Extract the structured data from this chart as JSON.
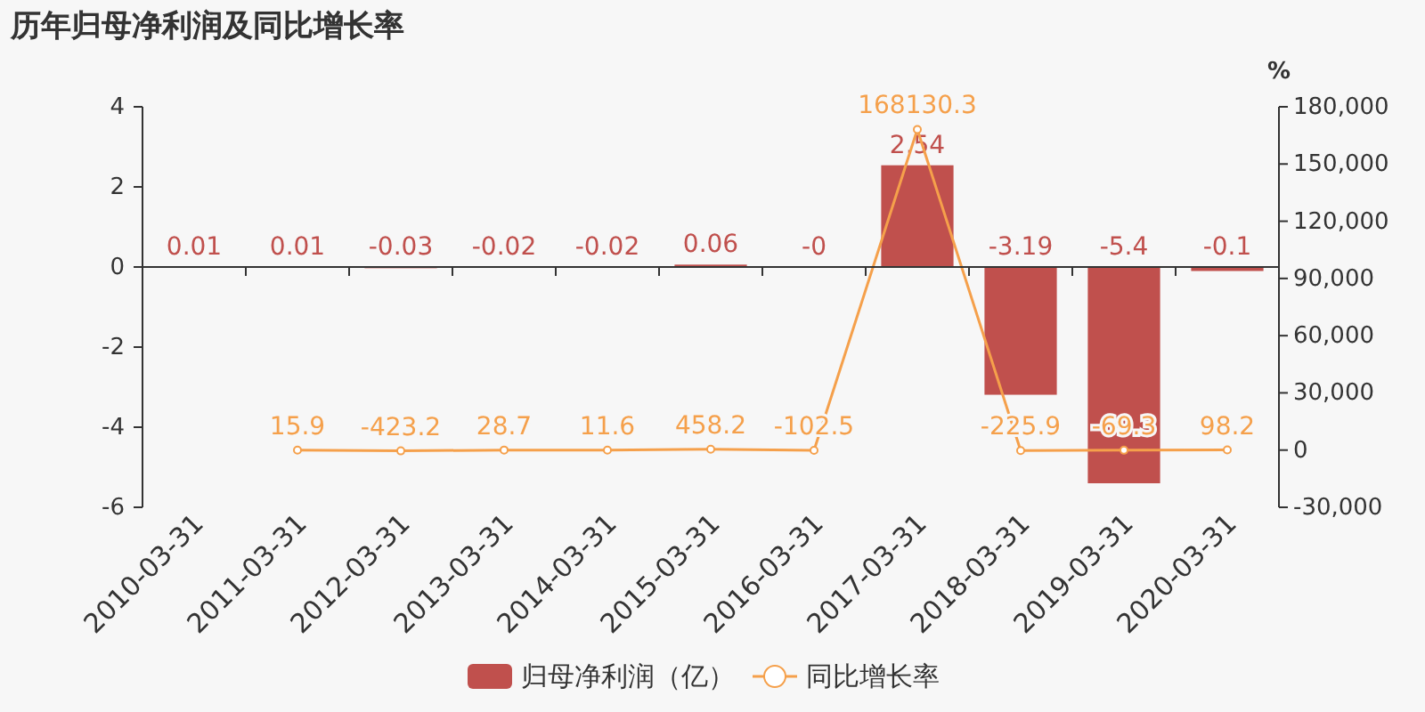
{
  "chart_data": {
    "type": "bar",
    "title": "历年归母净利润及同比增长率",
    "y2label": "%",
    "categories": [
      "2010-03-31",
      "2011-03-31",
      "2012-03-31",
      "2013-03-31",
      "2014-03-31",
      "2015-03-31",
      "2016-03-31",
      "2017-03-31",
      "2018-03-31",
      "2019-03-31",
      "2020-03-31"
    ],
    "series": [
      {
        "name": "归母净利润（亿）",
        "color": "#c0504d",
        "values": [
          0.01,
          0.01,
          -0.03,
          -0.02,
          -0.02,
          0.06,
          0,
          2.54,
          -3.19,
          -5.4,
          -0.1
        ],
        "value_labels": [
          "0.01",
          "0.01",
          "-0.03",
          "-0.02",
          "-0.02",
          "0.06",
          "-0",
          "2.54",
          "-3.19",
          "-5.4",
          "-0.1"
        ]
      },
      {
        "name": "同比增长率",
        "type": "line",
        "axis": "y2",
        "color": "#f5a04b",
        "marker": "circle",
        "values": [
          null,
          15.9,
          -423.2,
          28.7,
          11.6,
          458.2,
          -102.5,
          168130.3,
          -225.9,
          -69.3,
          98.2
        ],
        "value_labels": [
          null,
          "15.9",
          "-423.2",
          "28.7",
          "11.6",
          "458.2",
          "-102.5",
          "168130.3",
          "-225.9",
          "-69.3",
          "98.2"
        ]
      }
    ],
    "ylim": [
      -6,
      4
    ],
    "yticks": [
      -6,
      -4,
      -2,
      0,
      2,
      4
    ],
    "y2lim": [
      -30000,
      180000
    ],
    "y2ticks": [
      {
        "value": -30000,
        "label": "-30,000"
      },
      {
        "value": 0,
        "label": "0"
      },
      {
        "value": 30000,
        "label": "30,000"
      },
      {
        "value": 60000,
        "label": "60,000"
      },
      {
        "value": 90000,
        "label": "90,000"
      },
      {
        "value": 120000,
        "label": "120,000"
      },
      {
        "value": 150000,
        "label": "150,000"
      },
      {
        "value": 180000,
        "label": "180,000"
      }
    ],
    "legend": "bottom"
  }
}
